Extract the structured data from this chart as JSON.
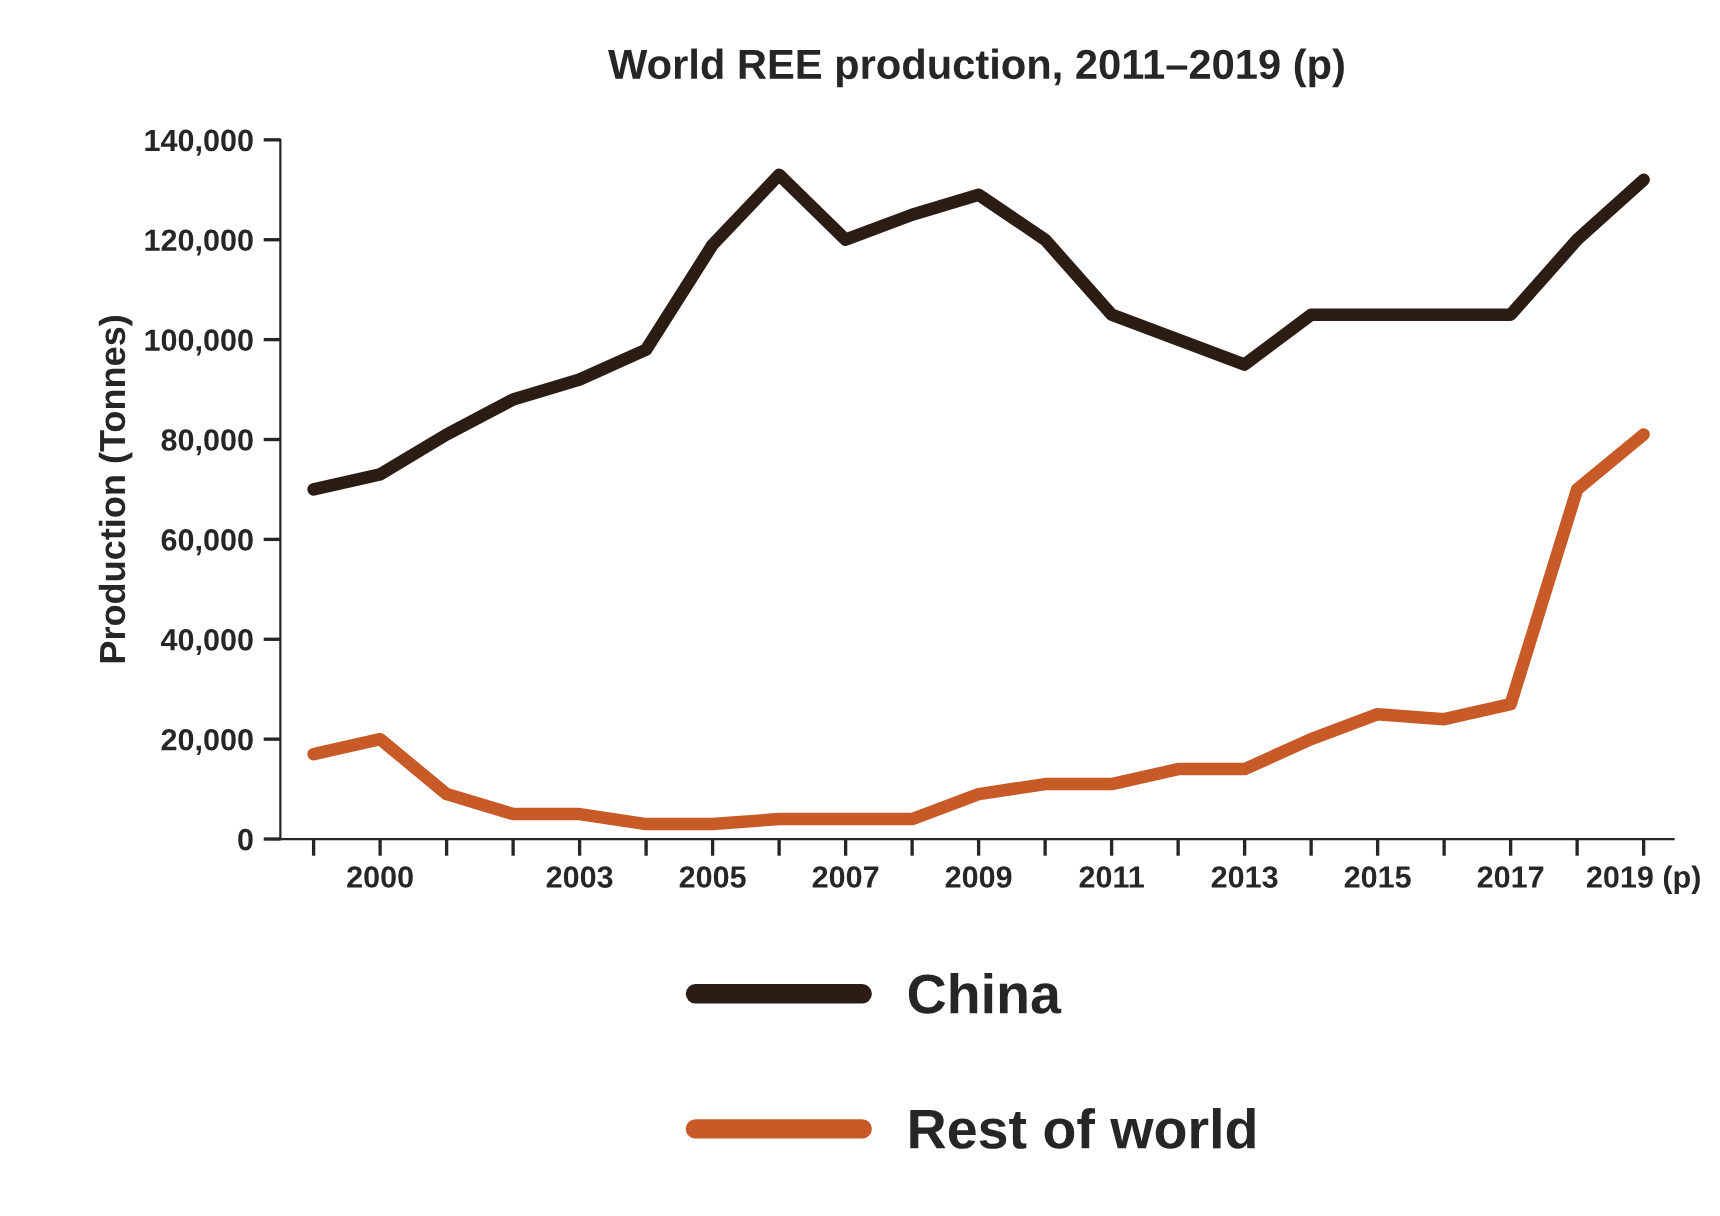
{
  "chart_data": {
    "type": "line",
    "title": "World REE production, 2011–2019 (p)",
    "ylabel": "Production (Tonnes)",
    "x": [
      1999,
      2000,
      2001,
      2002,
      2003,
      2004,
      2005,
      2006,
      2007,
      2008,
      2009,
      2010,
      2011,
      2012,
      2013,
      2014,
      2015,
      2016,
      2017,
      2018,
      2019
    ],
    "series": [
      {
        "name": "China",
        "color": "#2b1d14",
        "values": [
          70000,
          73000,
          81000,
          88000,
          92000,
          98000,
          119000,
          133000,
          120000,
          125000,
          129000,
          120000,
          105000,
          100000,
          95000,
          105000,
          105000,
          105000,
          105000,
          120000,
          132000
        ]
      },
      {
        "name": "Rest of world",
        "color": "#c85a28",
        "values": [
          17000,
          20000,
          9000,
          5000,
          5000,
          3000,
          3000,
          4000,
          4000,
          4000,
          9000,
          11000,
          11000,
          14000,
          14000,
          20000,
          25000,
          24000,
          27000,
          70000,
          81000
        ]
      }
    ],
    "xlim": [
      1998.5,
      2019.45
    ],
    "ylim": [
      0,
      140000
    ],
    "xticks": [
      {
        "value": 1999,
        "label": null
      },
      2000,
      {
        "value": 2001,
        "label": null
      },
      {
        "value": 2002,
        "label": null
      },
      2003,
      {
        "value": 2004,
        "label": null
      },
      2005,
      {
        "value": 2006,
        "label": null
      },
      2007,
      {
        "value": 2008,
        "label": null
      },
      2009,
      {
        "value": 2010,
        "label": null
      },
      2011,
      {
        "value": 2012,
        "label": null
      },
      2013,
      {
        "value": 2014,
        "label": null
      },
      2015,
      {
        "value": 2016,
        "label": null
      },
      2017,
      {
        "value": 2018,
        "label": null
      },
      {
        "value": 2019,
        "label": "2019 (p)"
      }
    ],
    "yticks": [
      {
        "value": 0,
        "label": "0"
      },
      {
        "value": 20000,
        "label": "20,000"
      },
      {
        "value": 40000,
        "label": "40,000"
      },
      {
        "value": 60000,
        "label": "60,000"
      },
      {
        "value": 80000,
        "label": "80,000"
      },
      {
        "value": 100000,
        "label": "100,000"
      },
      {
        "value": 120000,
        "label": "120,000"
      },
      {
        "value": 140000,
        "label": "140,000"
      }
    ],
    "grid": false,
    "legend": "bottom",
    "marker": "none",
    "line_style": "solid"
  }
}
